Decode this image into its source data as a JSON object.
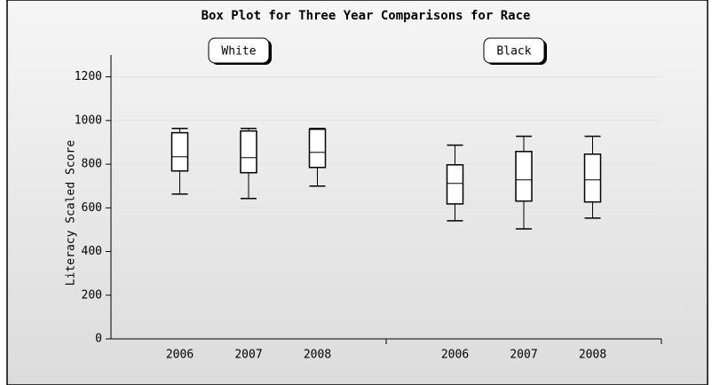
{
  "chart_data": {
    "type": "box",
    "title": "Box Plot for Three Year Comparisons for Race",
    "y_label": "Literacy Scaled Score",
    "ylim": [
      0,
      1300
    ],
    "yticks": [
      0,
      200,
      400,
      600,
      800,
      1000,
      1200
    ],
    "grid": true,
    "groups": [
      {
        "name": "White",
        "categories": [
          "2006",
          "2007",
          "2008"
        ],
        "boxes": [
          {
            "min": 663,
            "q1": 769,
            "median": 834,
            "q3": 944,
            "max": 964
          },
          {
            "min": 643,
            "q1": 761,
            "median": 830,
            "q3": 952,
            "max": 964
          },
          {
            "min": 700,
            "q1": 785,
            "median": 854,
            "q3": 960,
            "max": 964
          }
        ]
      },
      {
        "name": "Black",
        "categories": [
          "2006",
          "2007",
          "2008"
        ],
        "boxes": [
          {
            "min": 541,
            "q1": 618,
            "median": 712,
            "q3": 797,
            "max": 887
          },
          {
            "min": 504,
            "q1": 631,
            "median": 728,
            "q3": 858,
            "max": 928
          },
          {
            "min": 553,
            "q1": 627,
            "median": 728,
            "q3": 846,
            "max": 928
          }
        ]
      }
    ]
  }
}
